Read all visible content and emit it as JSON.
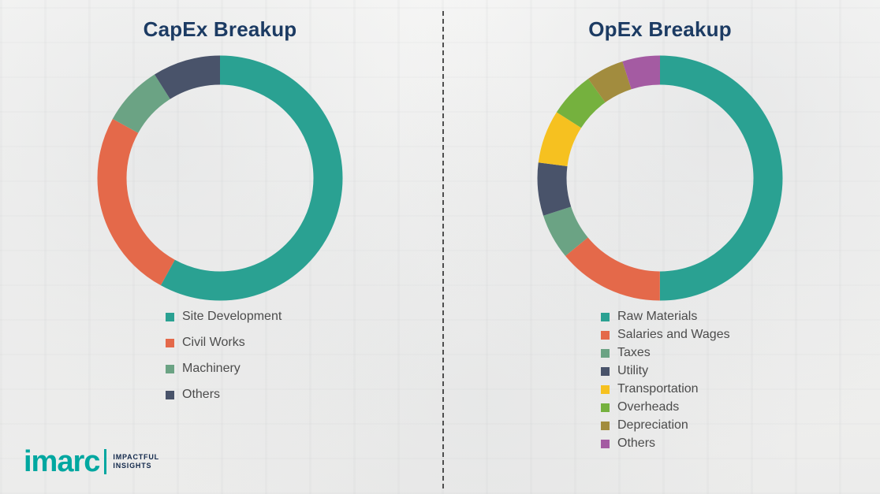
{
  "page": {
    "background_color": "#f3f3f2",
    "divider_style": "vertical-dashed"
  },
  "chart_data": [
    {
      "type": "pie",
      "subtype": "donut",
      "title": "CapEx Breakup",
      "labels": [
        "Site Development",
        "Civil Works",
        "Machinery",
        "Others"
      ],
      "values": [
        58,
        25,
        8,
        9
      ],
      "colors": [
        "#2aa192",
        "#e4694a",
        "#6ba384",
        "#49536a"
      ],
      "legend_position": "bottom",
      "start_angle_deg": 0,
      "direction": "clockwise"
    },
    {
      "type": "pie",
      "subtype": "donut",
      "title": "OpEx Breakup",
      "labels": [
        "Raw Materials",
        "Salaries and Wages",
        "Taxes",
        "Utility",
        "Transportation",
        "Overheads",
        "Depreciation",
        "Others"
      ],
      "values": [
        50,
        14,
        6,
        7,
        7,
        6,
        5,
        5
      ],
      "colors": [
        "#2aa192",
        "#e4694a",
        "#6ba384",
        "#49536a",
        "#f6c120",
        "#75b13e",
        "#a28c3e",
        "#a45ba2"
      ],
      "legend_position": "bottom",
      "start_angle_deg": 0,
      "direction": "clockwise"
    }
  ],
  "title_color": "#1c3b63",
  "legend_text_color": "#4c4c4c",
  "logo": {
    "brand": "imarc",
    "tagline_line1": "IMPACTFUL",
    "tagline_line2": "INSIGHTS",
    "brand_color": "#00a7a0"
  }
}
